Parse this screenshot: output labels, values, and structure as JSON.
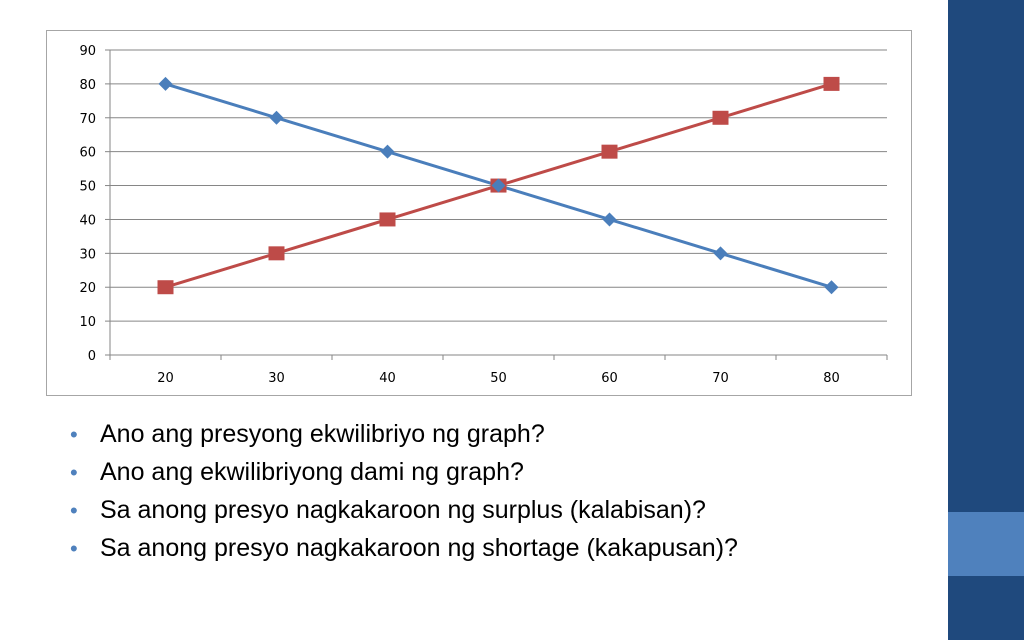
{
  "colors": {
    "side_band": "#1f497d",
    "side_accent": "#4f81bd",
    "series_blue": "#4a7ebb",
    "series_red": "#be4b48",
    "bullet": "#4f81bd"
  },
  "chart_data": {
    "type": "line",
    "x": [
      20,
      30,
      40,
      50,
      60,
      70,
      80
    ],
    "series": [
      {
        "values": [
          80,
          70,
          60,
          50,
          40,
          30,
          20
        ],
        "marker": "diamond",
        "color": "#4a7ebb"
      },
      {
        "values": [
          20,
          30,
          40,
          50,
          60,
          70,
          80
        ],
        "marker": "square",
        "color": "#be4b48"
      }
    ],
    "y_ticks": [
      "0",
      "10",
      "20",
      "30",
      "40",
      "50",
      "60",
      "70",
      "80",
      "90"
    ],
    "x_ticks": [
      "20",
      "30",
      "40",
      "50",
      "60",
      "70",
      "80"
    ],
    "ylim": [
      0,
      90
    ],
    "grid": true,
    "legend": "none"
  },
  "bullets": [
    "Ano ang presyong ekwilibriyo ng graph?",
    "Ano ang ekwilibriyong dami ng graph?",
    "Sa anong presyo nagkakaroon ng surplus (kalabisan)?",
    "Sa anong presyo nagkakaroon ng shortage (kakapusan)?"
  ]
}
